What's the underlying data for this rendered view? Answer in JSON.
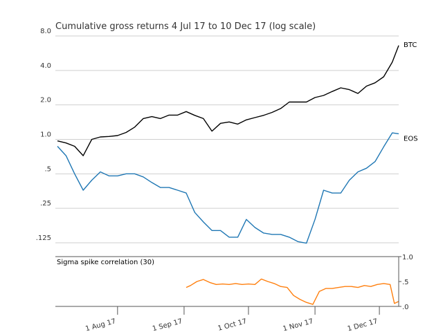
{
  "chart_data": [
    {
      "type": "line",
      "title": "Cumulative gross returns 4 Jul 17 to 10 Dec 17 (log scale)",
      "xlabel": "",
      "ylabel": "",
      "yscale": "log",
      "ylim": [
        0.1,
        8.0
      ],
      "yticks": [
        0.125,
        0.25,
        0.5,
        1.0,
        2.0,
        4.0,
        8.0
      ],
      "ytick_labels": [
        ".125",
        ".25",
        ".5",
        "1.0",
        "2.0",
        "4.0",
        "8.0"
      ],
      "x_range": [
        "2017-07-04",
        "2017-12-10"
      ],
      "grid": true,
      "legend": "labels at line ends (right)",
      "series": [
        {
          "name": "BTC",
          "color": "#000000",
          "x": [
            "2017-07-04",
            "2017-07-08",
            "2017-07-12",
            "2017-07-16",
            "2017-07-20",
            "2017-07-24",
            "2017-07-28",
            "2017-08-01",
            "2017-08-05",
            "2017-08-09",
            "2017-08-13",
            "2017-08-17",
            "2017-08-21",
            "2017-08-25",
            "2017-08-29",
            "2017-09-02",
            "2017-09-06",
            "2017-09-10",
            "2017-09-14",
            "2017-09-18",
            "2017-09-22",
            "2017-09-26",
            "2017-09-30",
            "2017-10-04",
            "2017-10-08",
            "2017-10-12",
            "2017-10-16",
            "2017-10-20",
            "2017-10-24",
            "2017-10-28",
            "2017-11-01",
            "2017-11-05",
            "2017-11-09",
            "2017-11-13",
            "2017-11-17",
            "2017-11-21",
            "2017-11-25",
            "2017-11-29",
            "2017-12-03",
            "2017-12-07",
            "2017-12-10"
          ],
          "values": [
            0.97,
            0.93,
            0.87,
            0.72,
            1.0,
            1.05,
            1.06,
            1.08,
            1.15,
            1.28,
            1.52,
            1.58,
            1.52,
            1.63,
            1.63,
            1.75,
            1.62,
            1.52,
            1.18,
            1.38,
            1.42,
            1.36,
            1.48,
            1.55,
            1.62,
            1.72,
            1.86,
            2.12,
            2.12,
            2.12,
            2.32,
            2.42,
            2.62,
            2.82,
            2.72,
            2.52,
            2.92,
            3.12,
            3.52,
            4.72,
            6.6
          ]
        },
        {
          "name": "EOS",
          "color": "#1f77b4",
          "x": [
            "2017-07-04",
            "2017-07-08",
            "2017-07-12",
            "2017-07-16",
            "2017-07-20",
            "2017-07-24",
            "2017-07-28",
            "2017-08-01",
            "2017-08-05",
            "2017-08-09",
            "2017-08-13",
            "2017-08-17",
            "2017-08-21",
            "2017-08-25",
            "2017-08-29",
            "2017-09-02",
            "2017-09-06",
            "2017-09-10",
            "2017-09-14",
            "2017-09-18",
            "2017-09-22",
            "2017-09-26",
            "2017-09-30",
            "2017-10-04",
            "2017-10-08",
            "2017-10-12",
            "2017-10-16",
            "2017-10-20",
            "2017-10-24",
            "2017-10-28",
            "2017-11-01",
            "2017-11-05",
            "2017-11-09",
            "2017-11-13",
            "2017-11-17",
            "2017-11-21",
            "2017-11-25",
            "2017-11-29",
            "2017-12-03",
            "2017-12-07",
            "2017-12-10"
          ],
          "values": [
            0.87,
            0.72,
            0.5,
            0.36,
            0.44,
            0.52,
            0.48,
            0.48,
            0.5,
            0.5,
            0.47,
            0.42,
            0.38,
            0.38,
            0.36,
            0.34,
            0.23,
            0.19,
            0.16,
            0.16,
            0.14,
            0.14,
            0.2,
            0.17,
            0.152,
            0.148,
            0.148,
            0.14,
            0.128,
            0.124,
            0.2,
            0.36,
            0.34,
            0.34,
            0.44,
            0.52,
            0.56,
            0.64,
            0.86,
            1.14,
            1.12
          ]
        }
      ]
    },
    {
      "type": "line",
      "title": "Sigma spike correlation (30)",
      "xlabel": "",
      "ylabel": "",
      "ylim": [
        0.0,
        1.0
      ],
      "yticks": [
        0.0,
        0.5,
        1.0
      ],
      "ytick_labels": [
        ".0",
        ".5",
        "1.0"
      ],
      "xtick_labels": [
        "1 Aug 17",
        "1 Sep 17",
        "1 Oct 17",
        "1 Nov 17",
        "1 Dec 17"
      ],
      "xticks": [
        "2017-08-01",
        "2017-09-01",
        "2017-10-01",
        "2017-11-01",
        "2017-12-01"
      ],
      "grid": false,
      "series": [
        {
          "name": "",
          "color": "#ff7f0e",
          "x": [
            "2017-09-02",
            "2017-09-04",
            "2017-09-07",
            "2017-09-10",
            "2017-09-13",
            "2017-09-16",
            "2017-09-19",
            "2017-09-22",
            "2017-09-25",
            "2017-09-28",
            "2017-10-01",
            "2017-10-04",
            "2017-10-07",
            "2017-10-10",
            "2017-10-13",
            "2017-10-16",
            "2017-10-19",
            "2017-10-22",
            "2017-10-25",
            "2017-10-28",
            "2017-10-31",
            "2017-11-03",
            "2017-11-06",
            "2017-11-09",
            "2017-11-12",
            "2017-11-15",
            "2017-11-18",
            "2017-11-21",
            "2017-11-24",
            "2017-11-27",
            "2017-11-30",
            "2017-12-03",
            "2017-12-06",
            "2017-12-08",
            "2017-12-10"
          ],
          "values": [
            0.38,
            0.42,
            0.5,
            0.54,
            0.48,
            0.44,
            0.45,
            0.44,
            0.46,
            0.44,
            0.45,
            0.44,
            0.55,
            0.5,
            0.46,
            0.4,
            0.38,
            0.22,
            0.14,
            0.08,
            0.04,
            0.3,
            0.36,
            0.36,
            0.38,
            0.4,
            0.4,
            0.38,
            0.42,
            0.4,
            0.44,
            0.46,
            0.44,
            0.06,
            0.1
          ]
        }
      ]
    }
  ]
}
